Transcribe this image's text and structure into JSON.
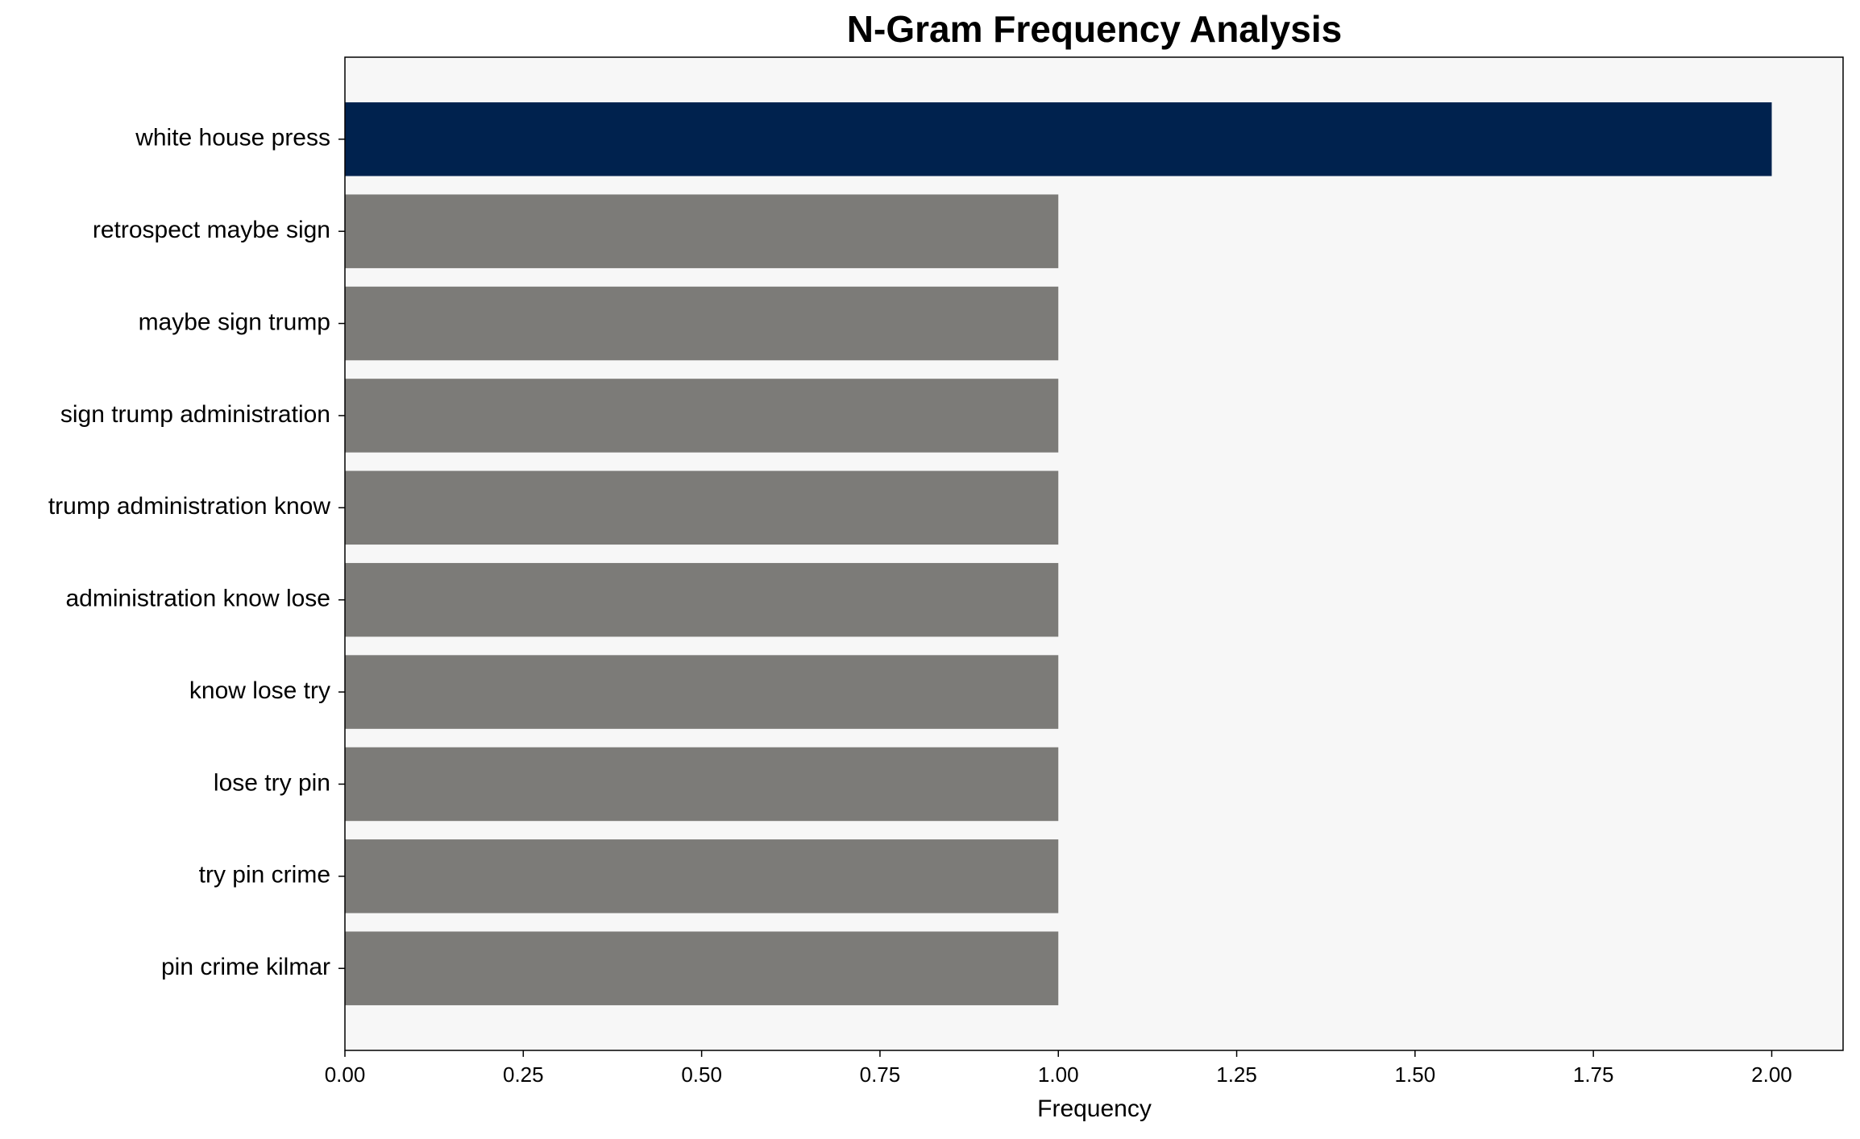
{
  "chart_data": {
    "type": "barh",
    "title": "N-Gram Frequency Analysis",
    "x_label": "Frequency",
    "categories": [
      "white house press",
      "retrospect maybe sign",
      "maybe sign trump",
      "sign trump administration",
      "trump administration know",
      "administration know lose",
      "know lose try",
      "lose try pin",
      "try pin crime",
      "pin crime kilmar"
    ],
    "values": [
      2,
      1,
      1,
      1,
      1,
      1,
      1,
      1,
      1,
      1
    ],
    "colors": [
      "#00224e",
      "#7c7b78",
      "#7c7b78",
      "#7c7b78",
      "#7c7b78",
      "#7c7b78",
      "#7c7b78",
      "#7c7b78",
      "#7c7b78",
      "#7c7b78"
    ],
    "xlim": [
      0,
      2.1
    ],
    "xticks": [
      {
        "value": 0,
        "label": "0.00"
      },
      {
        "value": 0.25,
        "label": "0.25"
      },
      {
        "value": 0.5,
        "label": "0.50"
      },
      {
        "value": 0.75,
        "label": "0.75"
      },
      {
        "value": 1,
        "label": "1.00"
      },
      {
        "value": 1.25,
        "label": "1.25"
      },
      {
        "value": 1.5,
        "label": "1.50"
      },
      {
        "value": 1.75,
        "label": "1.75"
      },
      {
        "value": 2,
        "label": "2.00"
      }
    ],
    "grid": false
  }
}
